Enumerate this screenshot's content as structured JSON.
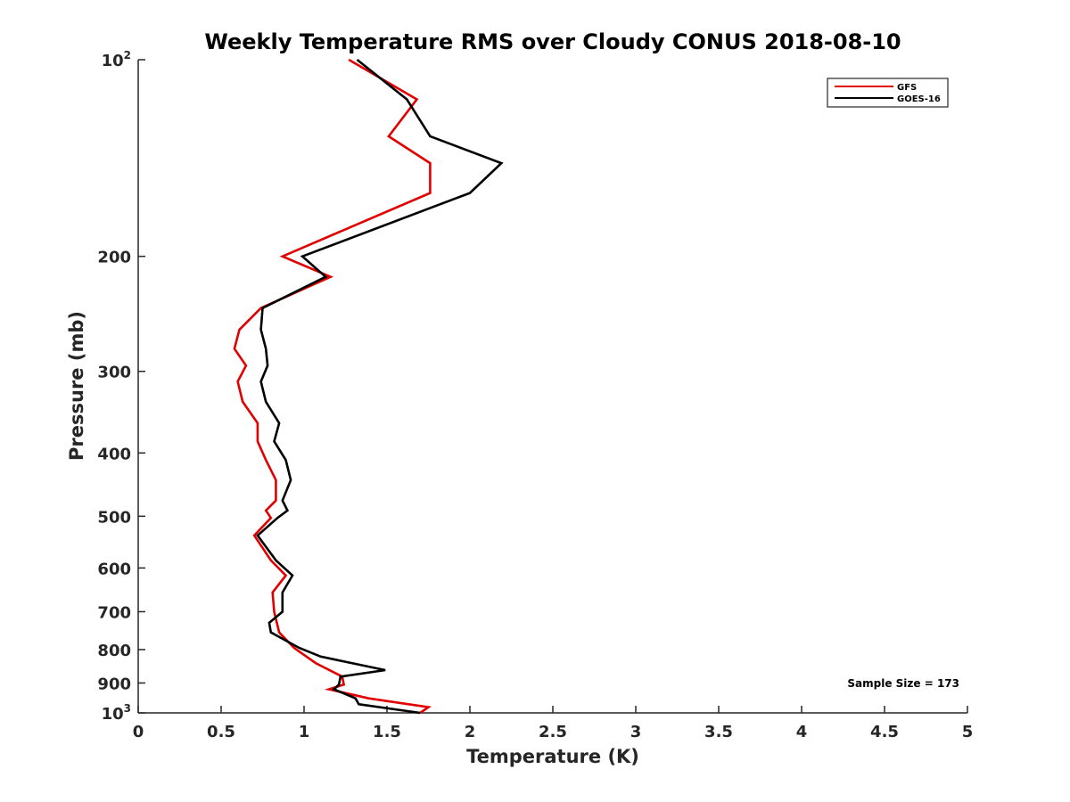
{
  "chart_data": {
    "type": "line",
    "title": "Weekly Temperature RMS over Cloudy CONUS 2018-08-10",
    "xlabel": "Temperature (K)",
    "ylabel": "Pressure (mb)",
    "xlim": [
      0,
      5
    ],
    "ylim": [
      100,
      1000
    ],
    "y_scale": "log",
    "y_reversed": true,
    "grid": false,
    "legend_position": "top-right",
    "x_ticks": [
      {
        "value": 0,
        "label": "0"
      },
      {
        "value": 0.5,
        "label": "0.5"
      },
      {
        "value": 1,
        "label": "1"
      },
      {
        "value": 1.5,
        "label": "1.5"
      },
      {
        "value": 2,
        "label": "2"
      },
      {
        "value": 2.5,
        "label": "2.5"
      },
      {
        "value": 3,
        "label": "3"
      },
      {
        "value": 3.5,
        "label": "3.5"
      },
      {
        "value": 4,
        "label": "4"
      },
      {
        "value": 4.5,
        "label": "4.5"
      },
      {
        "value": 5,
        "label": "5"
      }
    ],
    "y_ticks": [
      {
        "value": 100,
        "base": "10",
        "exp": "2"
      },
      {
        "value": 200,
        "base": "200",
        "exp": ""
      },
      {
        "value": 300,
        "base": "300",
        "exp": ""
      },
      {
        "value": 400,
        "base": "400",
        "exp": ""
      },
      {
        "value": 500,
        "base": "500",
        "exp": ""
      },
      {
        "value": 600,
        "base": "600",
        "exp": ""
      },
      {
        "value": 700,
        "base": "700",
        "exp": ""
      },
      {
        "value": 800,
        "base": "800",
        "exp": ""
      },
      {
        "value": 900,
        "base": "900",
        "exp": ""
      },
      {
        "value": 1000,
        "base": "10",
        "exp": "3"
      }
    ],
    "series": [
      {
        "name": "GFS",
        "color": "#e00000",
        "points": [
          [
            1.27,
            100
          ],
          [
            1.68,
            115
          ],
          [
            1.51,
            131
          ],
          [
            1.76,
            144
          ],
          [
            1.76,
            160
          ],
          [
            0.87,
            200
          ],
          [
            1.16,
            215
          ],
          [
            0.74,
            240
          ],
          [
            0.61,
            259
          ],
          [
            0.58,
            277
          ],
          [
            0.65,
            294
          ],
          [
            0.6,
            311
          ],
          [
            0.63,
            334
          ],
          [
            0.72,
            360
          ],
          [
            0.72,
            384
          ],
          [
            0.77,
            410
          ],
          [
            0.83,
            440
          ],
          [
            0.83,
            473
          ],
          [
            0.77,
            490
          ],
          [
            0.8,
            503
          ],
          [
            0.7,
            535
          ],
          [
            0.8,
            584
          ],
          [
            0.89,
            616
          ],
          [
            0.81,
            654
          ],
          [
            0.82,
            700
          ],
          [
            0.85,
            753
          ],
          [
            0.94,
            795
          ],
          [
            1.07,
            839
          ],
          [
            1.23,
            880
          ],
          [
            1.24,
            905
          ],
          [
            1.15,
            920
          ],
          [
            1.39,
            950
          ],
          [
            1.75,
            980
          ],
          [
            1.7,
            1000
          ]
        ]
      },
      {
        "name": "GOES-16",
        "color": "#000000",
        "points": [
          [
            1.32,
            100
          ],
          [
            1.62,
            115
          ],
          [
            1.76,
            131
          ],
          [
            2.19,
            144
          ],
          [
            2.0,
            160
          ],
          [
            0.99,
            200
          ],
          [
            1.13,
            215
          ],
          [
            0.75,
            240
          ],
          [
            0.74,
            259
          ],
          [
            0.77,
            277
          ],
          [
            0.78,
            294
          ],
          [
            0.74,
            311
          ],
          [
            0.77,
            334
          ],
          [
            0.85,
            360
          ],
          [
            0.82,
            384
          ],
          [
            0.89,
            410
          ],
          [
            0.92,
            440
          ],
          [
            0.87,
            473
          ],
          [
            0.9,
            490
          ],
          [
            0.84,
            503
          ],
          [
            0.72,
            535
          ],
          [
            0.83,
            584
          ],
          [
            0.93,
            616
          ],
          [
            0.87,
            654
          ],
          [
            0.87,
            700
          ],
          [
            0.79,
            728
          ],
          [
            0.8,
            753
          ],
          [
            0.97,
            795
          ],
          [
            1.1,
            820
          ],
          [
            1.49,
            860
          ],
          [
            1.22,
            880
          ],
          [
            1.21,
            905
          ],
          [
            1.18,
            920
          ],
          [
            1.31,
            950
          ],
          [
            1.33,
            970
          ],
          [
            1.7,
            1000
          ]
        ]
      }
    ],
    "annotation": "Sample Size = 173"
  }
}
